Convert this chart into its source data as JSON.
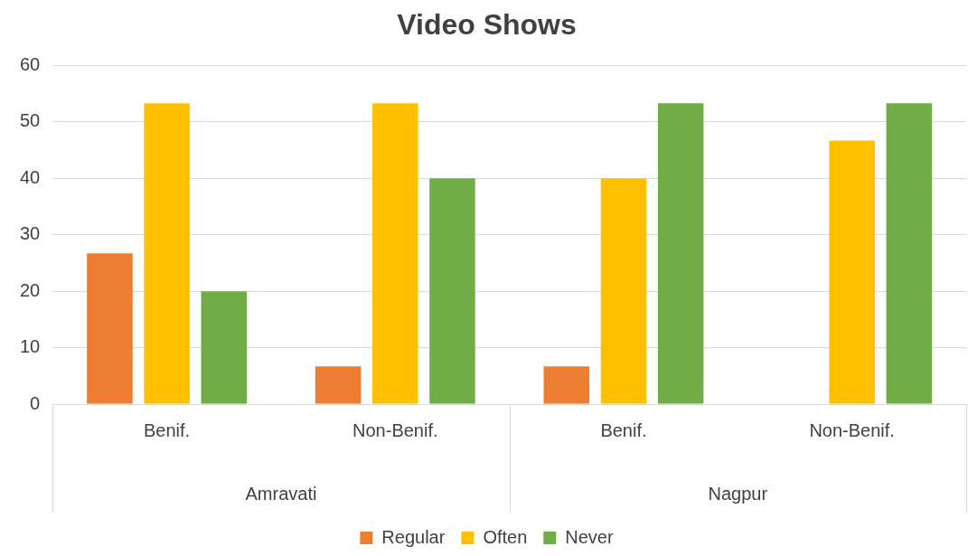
{
  "chart_data": {
    "type": "bar",
    "title": "Video Shows",
    "categories": [
      "Benif.",
      "Non-Benif.",
      "Benif.",
      "Non-Benif."
    ],
    "series": [
      {
        "name": "Regular",
        "color": "#ed7d31",
        "values": [
          26.7,
          6.7,
          6.7,
          0
        ]
      },
      {
        "name": "Often",
        "color": "#ffc000",
        "values": [
          53.3,
          53.3,
          40,
          46.7
        ]
      },
      {
        "name": "Never",
        "color": "#70ad47",
        "values": [
          20,
          40,
          53.3,
          53.3
        ]
      }
    ],
    "annotations": [
      "Amravati",
      "Nagpur"
    ],
    "ylim": [
      0,
      60
    ],
    "yticks": [
      0,
      10,
      20,
      30,
      40,
      50,
      60
    ],
    "grid": "y",
    "legend": "bottom"
  }
}
